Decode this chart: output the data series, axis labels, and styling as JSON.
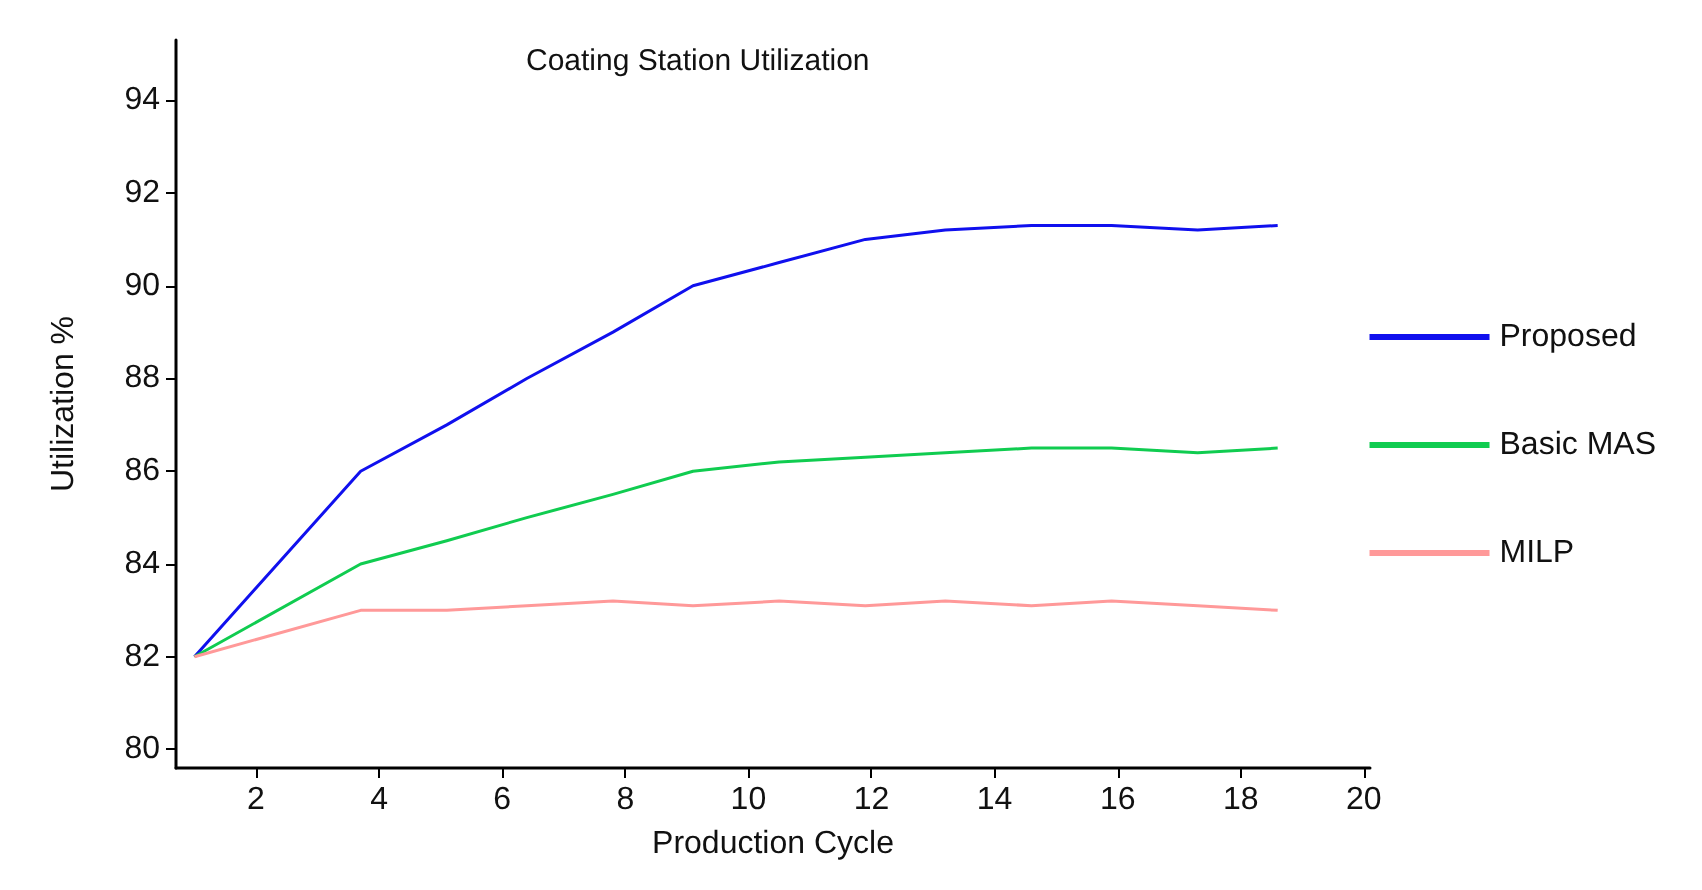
{
  "chart_data": {
    "type": "line",
    "title": "Coating Station Utilization",
    "xlabel": "Production Cycle",
    "ylabel": "Utilization %",
    "x": [
      1,
      3.7,
      5.1,
      6.4,
      7.8,
      9.1,
      10.5,
      11.9,
      13.2,
      14.6,
      15.9,
      17.3,
      18.6
    ],
    "series": [
      {
        "name": "Proposed",
        "color": "#1010ee",
        "values": [
          82,
          86,
          87,
          88,
          89,
          90,
          90.5,
          91,
          91.2,
          91.3,
          91.3,
          91.2,
          91.3
        ]
      },
      {
        "name": "Basic MAS",
        "color": "#10cc50",
        "values": [
          82,
          84,
          84.5,
          85,
          85.5,
          86,
          86.2,
          86.3,
          86.4,
          86.5,
          86.5,
          86.4,
          86.5
        ]
      },
      {
        "name": "MILP",
        "color": "#ff9999",
        "values": [
          82,
          83,
          83,
          83.1,
          83.2,
          83.1,
          83.2,
          83.1,
          83.2,
          83.1,
          83.2,
          83.1,
          83
        ]
      }
    ],
    "xlim": [
      0.7,
      20.1
    ],
    "xticks": [
      2,
      4,
      6,
      8,
      10,
      12,
      14,
      16,
      18,
      20
    ],
    "ylim": [
      79.6,
      95.3
    ],
    "yticks": [
      80,
      82,
      84,
      86,
      88,
      90,
      92,
      94
    ],
    "grid": false,
    "legend": "right",
    "marker": "none",
    "line_style": "solid"
  }
}
